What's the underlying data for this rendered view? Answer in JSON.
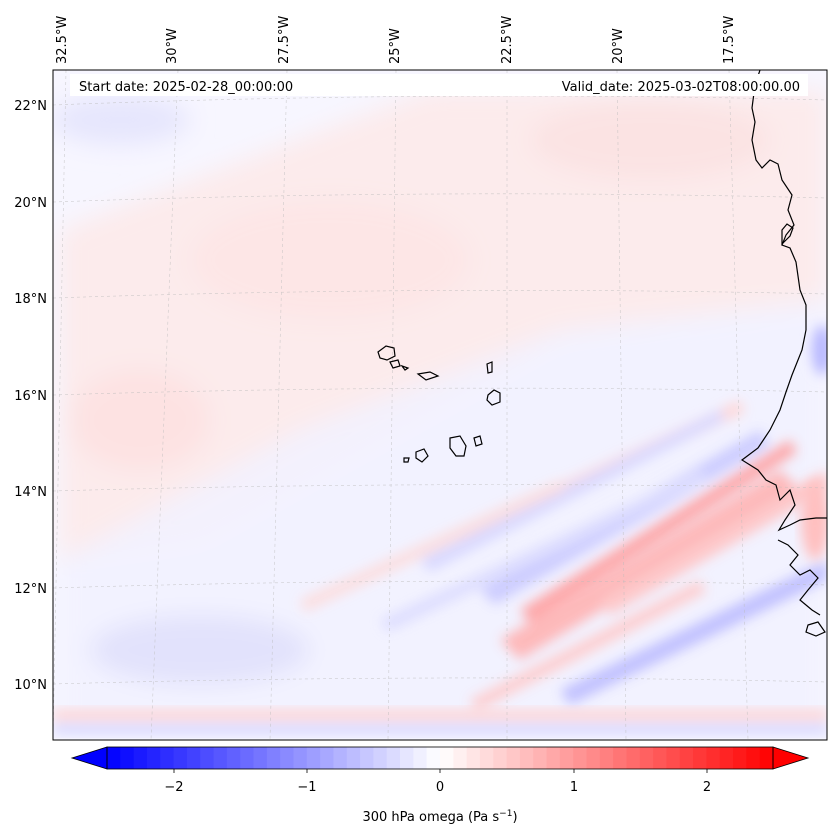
{
  "header": {
    "start_date": "Start date: 2025-02-28_00:00:00",
    "valid_date": "Valid_date: 2025-03-02T08:00:00.00"
  },
  "longitude_labels": [
    "32.5°W",
    "30°W",
    "27.5°W",
    "25°W",
    "22.5°W",
    "20°W",
    "17.5°W"
  ],
  "latitude_labels": [
    "22°N",
    "20°N",
    "18°N",
    "16°N",
    "14°N",
    "12°N",
    "10°N"
  ],
  "colorbar": {
    "ticks": [
      "−2",
      "−1",
      "0",
      "1",
      "2"
    ],
    "label_prefix": "300 hPa omega (Pa s",
    "label_exp": "−1",
    "label_suffix": ")",
    "range": [
      -2.5,
      2.5
    ],
    "colors": {
      "min": "#0000ff",
      "mid": "#ffffff",
      "max": "#ff0000"
    }
  },
  "field": {
    "variable": "300 hPa omega",
    "units": "Pa s-1"
  }
}
